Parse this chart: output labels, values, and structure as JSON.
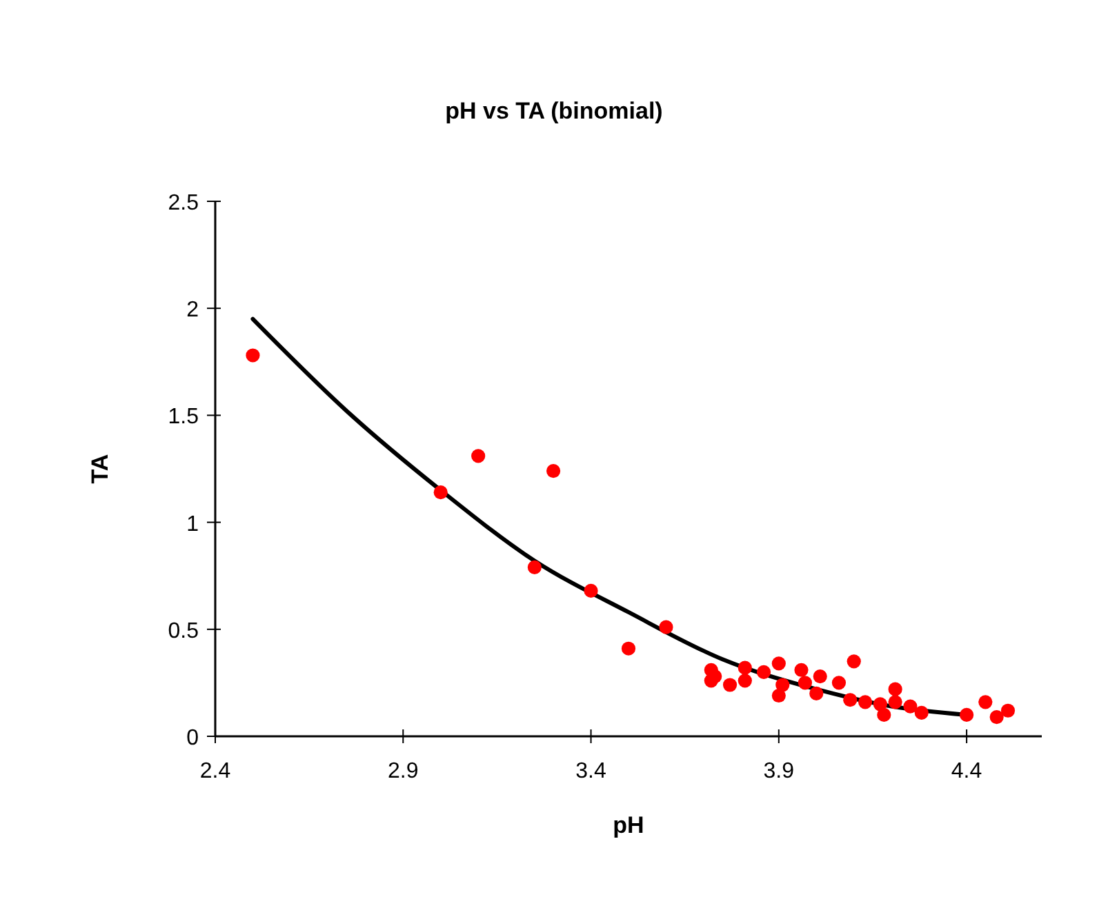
{
  "chart_data": {
    "type": "scatter",
    "title": "pH vs TA (binomial)",
    "xlabel": "pH",
    "ylabel": "TA",
    "xlim": [
      2.4,
      4.6
    ],
    "xticks": [
      2.4,
      2.9,
      3.4,
      3.9,
      4.4
    ],
    "ylim": [
      0,
      2.5
    ],
    "yticks": [
      0,
      0.5,
      1,
      1.5,
      2,
      2.5
    ],
    "grid": false,
    "series": [
      {
        "color": "#ff0000",
        "marker": "circle",
        "x": [
          2.5,
          3.0,
          3.1,
          3.3,
          3.25,
          3.4,
          3.5,
          3.6,
          3.72,
          3.72,
          3.73,
          3.77,
          3.81,
          3.81,
          3.86,
          3.9,
          3.9,
          3.91,
          3.96,
          3.97,
          4.01,
          4.0,
          4.06,
          4.1,
          4.09,
          4.13,
          4.17,
          4.18,
          4.21,
          4.21,
          4.25,
          4.28,
          4.4,
          4.45,
          4.48,
          4.51
        ],
        "values": [
          1.78,
          1.14,
          1.31,
          1.24,
          0.79,
          0.68,
          0.41,
          0.51,
          0.31,
          0.26,
          0.28,
          0.24,
          0.32,
          0.26,
          0.3,
          0.34,
          0.19,
          0.24,
          0.31,
          0.25,
          0.28,
          0.2,
          0.25,
          0.35,
          0.17,
          0.16,
          0.15,
          0.1,
          0.22,
          0.16,
          0.14,
          0.11,
          0.1,
          0.16,
          0.09,
          0.12
        ]
      },
      {
        "type": "line",
        "color": "#000000",
        "marker": "none",
        "line_style": "solid",
        "x": [
          2.5,
          2.75,
          3.0,
          3.25,
          3.5,
          3.75,
          4.0,
          4.2,
          4.4
        ],
        "values": [
          1.95,
          1.52,
          1.15,
          0.82,
          0.58,
          0.36,
          0.22,
          0.14,
          0.1
        ]
      }
    ]
  }
}
